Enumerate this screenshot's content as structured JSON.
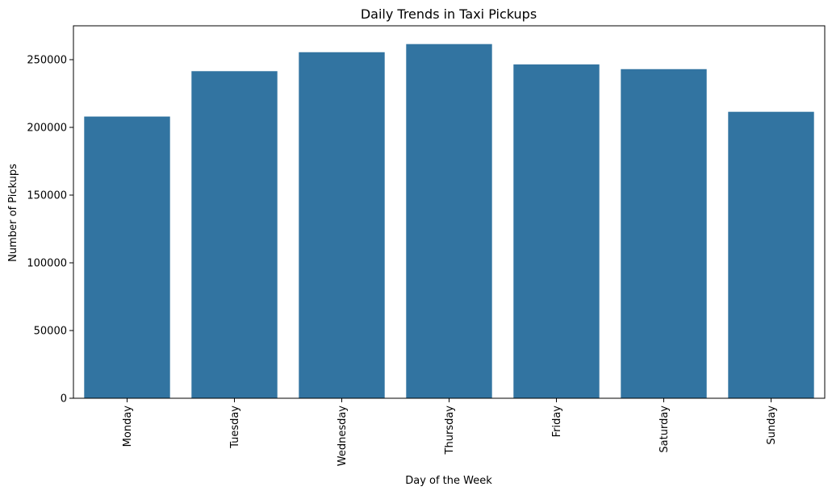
{
  "chart_data": {
    "type": "bar",
    "title": "Daily Trends in Taxi Pickups",
    "xlabel": "Day of the Week",
    "ylabel": "Number of Pickups",
    "categories": [
      "Monday",
      "Tuesday",
      "Wednesday",
      "Thursday",
      "Friday",
      "Saturday",
      "Sunday"
    ],
    "values": [
      208000,
      241500,
      255500,
      261500,
      246500,
      243000,
      211500
    ],
    "ylim": [
      0,
      275000
    ],
    "yticks": [
      0,
      50000,
      100000,
      150000,
      200000,
      250000
    ],
    "ytick_labels": [
      "0",
      "50000",
      "100000",
      "150000",
      "200000",
      "250000"
    ],
    "xtick_rotation": "vertical",
    "grid": false,
    "bar_color": "#3274a1"
  }
}
